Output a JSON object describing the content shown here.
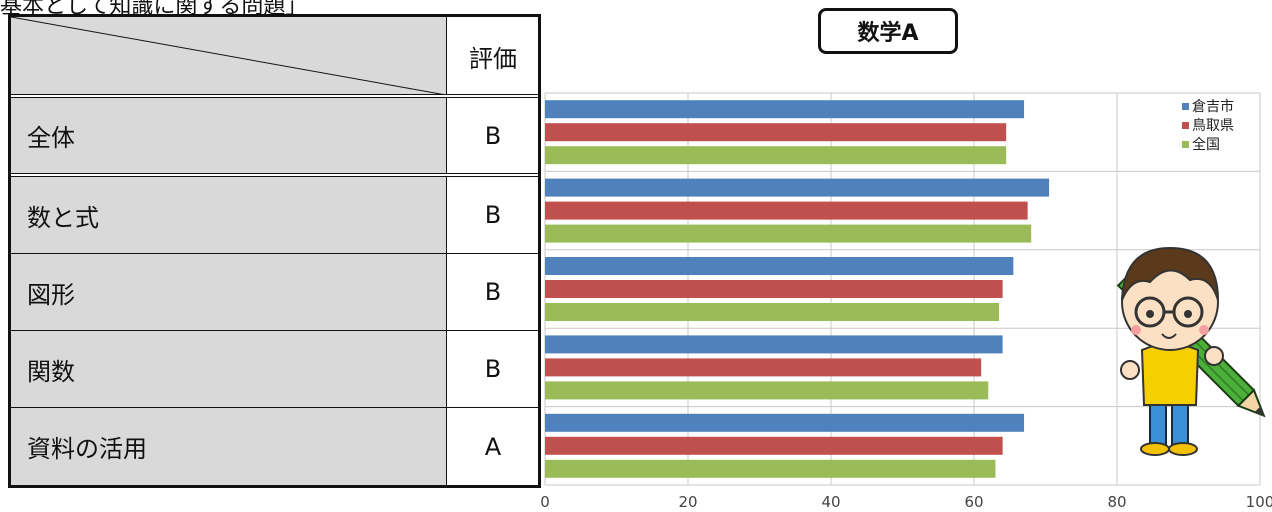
{
  "heading": "基本として知識に関する問題」",
  "table": {
    "grade_header": "評価",
    "rows": [
      {
        "label": "全体",
        "grade": "B"
      },
      {
        "label": "数と式",
        "grade": "B"
      },
      {
        "label": "図形",
        "grade": "B"
      },
      {
        "label": "関数",
        "grade": "B"
      },
      {
        "label": "資料の活用",
        "grade": "A"
      }
    ]
  },
  "mascot_icon": "boy-with-pencil-icon",
  "chart_data": {
    "type": "bar",
    "orientation": "horizontal",
    "title": "数学A",
    "categories": [
      "全体",
      "数と式",
      "図形",
      "関数",
      "資料の活用"
    ],
    "series": [
      {
        "name": "倉吉市",
        "color": "#4f81bd",
        "values": [
          67,
          70.5,
          65.5,
          64,
          67
        ]
      },
      {
        "name": "鳥取県",
        "color": "#c0504d",
        "values": [
          64.5,
          67.5,
          64,
          61,
          64
        ]
      },
      {
        "name": "全国",
        "color": "#9bbb59",
        "values": [
          64.5,
          68,
          63.5,
          62,
          63
        ]
      }
    ],
    "xlim": [
      0,
      100
    ],
    "xticks": [
      0,
      20,
      40,
      60,
      80,
      100
    ],
    "grid": true,
    "legend": "top-right"
  }
}
